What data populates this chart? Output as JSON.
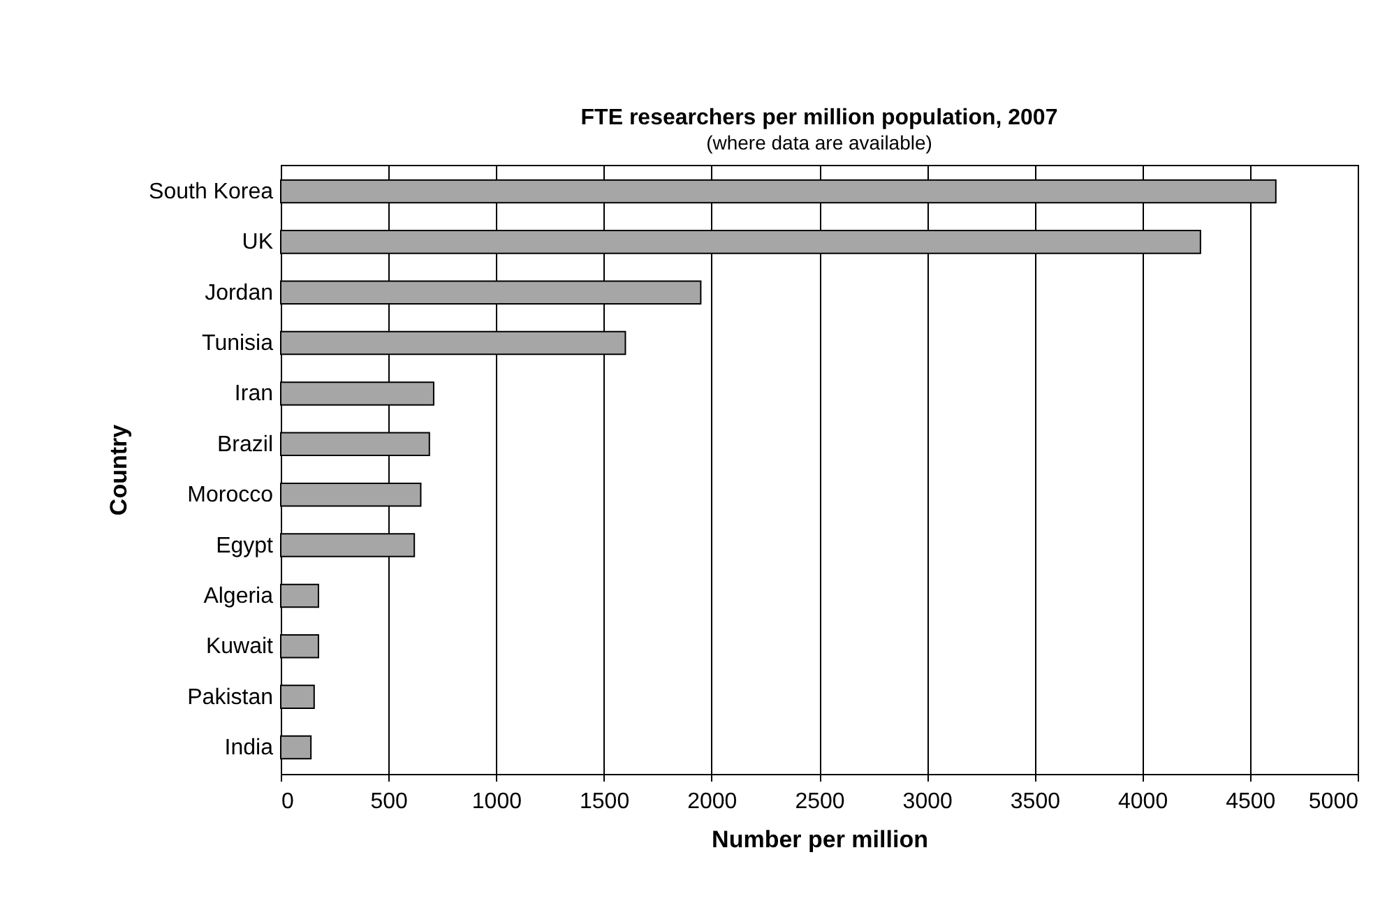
{
  "chart_data": {
    "type": "bar",
    "orientation": "horizontal",
    "title": "FTE researchers per million population, 2007",
    "subtitle": "(where data are available)",
    "xlabel": "Number per million",
    "ylabel": "Country",
    "categories": [
      "South Korea",
      "UK",
      "Jordan",
      "Tunisia",
      "Iran",
      "Brazil",
      "Morocco",
      "Egypt",
      "Algeria",
      "Kuwait",
      "Pakistan",
      "India"
    ],
    "values": [
      4620,
      4270,
      1950,
      1600,
      710,
      690,
      650,
      620,
      175,
      175,
      155,
      140
    ],
    "color": "#a6a6a6",
    "xlim": [
      0,
      5000
    ],
    "xticks": [
      0,
      500,
      1000,
      1500,
      2000,
      2500,
      3000,
      3500,
      4000,
      4500,
      5000
    ],
    "grid": "x"
  }
}
